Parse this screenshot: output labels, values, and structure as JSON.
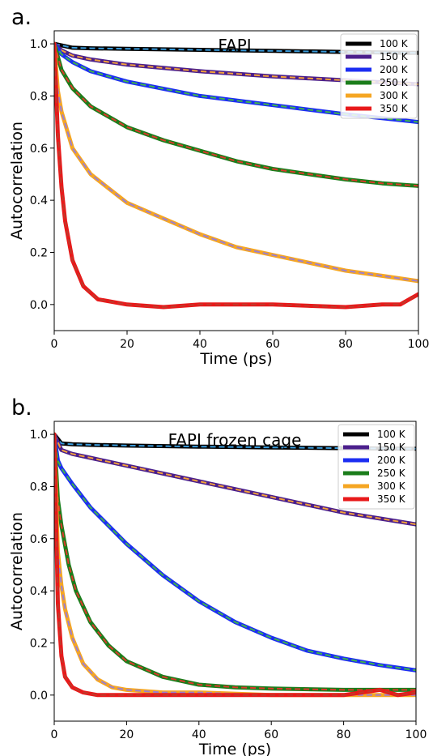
{
  "chart_data": [
    {
      "type": "line",
      "panel_label": "a.",
      "title": "FAPI",
      "xlabel": "Time (ps)",
      "ylabel": "Autocorrelation",
      "xlim": [
        0,
        100
      ],
      "ylim": [
        -0.1,
        1.05
      ],
      "xticks": [
        0,
        20,
        40,
        60,
        80,
        100
      ],
      "yticks": [
        0.0,
        0.2,
        0.4,
        0.6,
        0.8,
        1.0
      ],
      "ytick_labels": [
        "0.0",
        "0.2",
        "0.4",
        "0.6",
        "0.8",
        "1.0"
      ],
      "legend_position": "top-right",
      "series": [
        {
          "name": "100 K",
          "color": "#000000",
          "fit_color": "#3a9ad9",
          "x": [
            0,
            5,
            10,
            20,
            40,
            60,
            80,
            100
          ],
          "values": [
            1.0,
            0.985,
            0.983,
            0.981,
            0.977,
            0.973,
            0.969,
            0.965
          ]
        },
        {
          "name": "150 K",
          "color": "#4b1f8c",
          "fit_color": "#f2a13b",
          "x": [
            0,
            2,
            5,
            10,
            20,
            40,
            60,
            80,
            100
          ],
          "values": [
            1.0,
            0.975,
            0.955,
            0.94,
            0.92,
            0.895,
            0.875,
            0.86,
            0.845
          ]
        },
        {
          "name": "200 K",
          "color": "#1c2ef2",
          "fit_color": "#3fb34a",
          "x": [
            0,
            2,
            5,
            10,
            20,
            40,
            60,
            80,
            100
          ],
          "values": [
            1.0,
            0.96,
            0.93,
            0.895,
            0.855,
            0.8,
            0.765,
            0.73,
            0.7
          ]
        },
        {
          "name": "250 K",
          "color": "#1b7d1b",
          "fit_color": "#d93a2b",
          "x": [
            0,
            2,
            5,
            10,
            20,
            30,
            40,
            50,
            60,
            70,
            80,
            90,
            100
          ],
          "values": [
            1.0,
            0.9,
            0.83,
            0.76,
            0.68,
            0.63,
            0.59,
            0.55,
            0.52,
            0.5,
            0.48,
            0.465,
            0.455
          ]
        },
        {
          "name": "300 K",
          "color": "#f5a623",
          "fit_color": "#9b7fd0",
          "x": [
            0,
            1,
            2,
            5,
            10,
            20,
            30,
            40,
            50,
            60,
            70,
            80,
            90,
            100
          ],
          "values": [
            1.0,
            0.82,
            0.74,
            0.6,
            0.5,
            0.39,
            0.33,
            0.27,
            0.22,
            0.19,
            0.16,
            0.13,
            0.11,
            0.09
          ]
        },
        {
          "name": "350 K",
          "color": "#e8191a",
          "fit_color": "#c0392b",
          "x": [
            0,
            1,
            2,
            3,
            5,
            8,
            12,
            20,
            30,
            40,
            60,
            80,
            90,
            95,
            100
          ],
          "values": [
            1.0,
            0.65,
            0.45,
            0.32,
            0.17,
            0.07,
            0.02,
            0.0,
            -0.01,
            0.0,
            0.0,
            -0.01,
            0.0,
            0.0,
            0.04
          ]
        }
      ]
    },
    {
      "type": "line",
      "panel_label": "b.",
      "title": "FAPI frozen cage",
      "xlabel": "Time (ps)",
      "ylabel": "Autocorrelation",
      "xlim": [
        0,
        100
      ],
      "ylim": [
        -0.1,
        1.05
      ],
      "xticks": [
        0,
        20,
        40,
        60,
        80,
        100
      ],
      "yticks": [
        0.0,
        0.2,
        0.4,
        0.6,
        0.8,
        1.0
      ],
      "ytick_labels": [
        "0.0",
        "0.2",
        "0.4",
        "0.6",
        "0.8",
        "1.0"
      ],
      "legend_position": "top-right",
      "series": [
        {
          "name": "100 K",
          "color": "#000000",
          "fit_color": "#3a9ad9",
          "x": [
            0,
            2,
            5,
            10,
            20,
            40,
            60,
            80,
            100
          ],
          "values": [
            1.0,
            0.965,
            0.962,
            0.96,
            0.957,
            0.953,
            0.95,
            0.947,
            0.945
          ]
        },
        {
          "name": "150 K",
          "color": "#4b1f8c",
          "fit_color": "#f2a13b",
          "x": [
            0,
            2,
            5,
            10,
            20,
            40,
            60,
            80,
            100
          ],
          "values": [
            1.0,
            0.94,
            0.925,
            0.91,
            0.88,
            0.82,
            0.76,
            0.7,
            0.655
          ]
        },
        {
          "name": "200 K",
          "color": "#1c2ef2",
          "fit_color": "#3fb34a",
          "x": [
            0,
            1,
            2,
            5,
            10,
            20,
            30,
            40,
            50,
            60,
            70,
            80,
            90,
            100
          ],
          "values": [
            1.0,
            0.9,
            0.87,
            0.81,
            0.72,
            0.58,
            0.46,
            0.36,
            0.28,
            0.22,
            0.17,
            0.14,
            0.115,
            0.095
          ]
        },
        {
          "name": "250 K",
          "color": "#1b7d1b",
          "fit_color": "#d93a2b",
          "x": [
            0,
            1,
            2,
            4,
            6,
            10,
            15,
            20,
            30,
            40,
            50,
            60,
            80,
            100
          ],
          "values": [
            1.0,
            0.75,
            0.65,
            0.5,
            0.4,
            0.28,
            0.19,
            0.13,
            0.07,
            0.04,
            0.03,
            0.025,
            0.02,
            0.02
          ]
        },
        {
          "name": "300 K",
          "color": "#f5a623",
          "fit_color": "#9b7fd0",
          "x": [
            0,
            1,
            2,
            3,
            5,
            8,
            12,
            16,
            20,
            30,
            40,
            60,
            80,
            100
          ],
          "values": [
            1.0,
            0.55,
            0.42,
            0.33,
            0.22,
            0.12,
            0.06,
            0.03,
            0.02,
            0.01,
            0.01,
            0.0,
            0.0,
            0.0
          ]
        },
        {
          "name": "350 K",
          "color": "#e8191a",
          "fit_color": "#c0392b",
          "x": [
            0,
            1,
            2,
            3,
            5,
            8,
            12,
            20,
            40,
            60,
            80,
            90,
            95,
            100
          ],
          "values": [
            1.0,
            0.35,
            0.15,
            0.07,
            0.03,
            0.01,
            0.0,
            0.0,
            0.0,
            0.0,
            0.0,
            0.02,
            0.0,
            0.01
          ]
        }
      ]
    }
  ]
}
